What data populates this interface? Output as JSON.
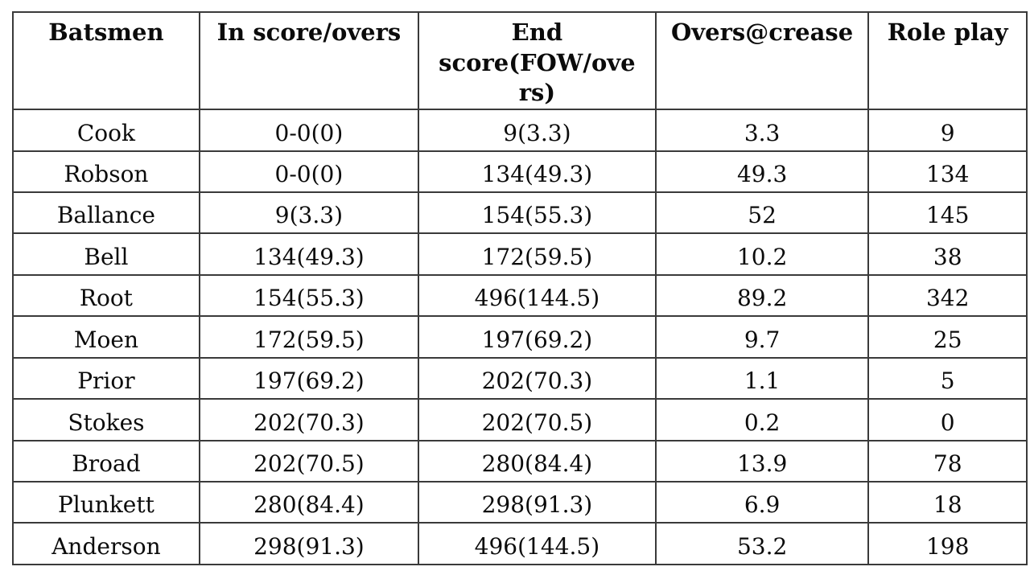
{
  "table": {
    "columns": [
      "Batsmen",
      "In score/overs",
      "End score(FOW/overs)",
      "Overs@crease",
      "Role play"
    ],
    "rows": [
      [
        "Cook",
        "0-0(0)",
        "9(3.3)",
        "3.3",
        "9"
      ],
      [
        "Robson",
        "0-0(0)",
        "134(49.3)",
        "49.3",
        "134"
      ],
      [
        "Ballance",
        "9(3.3)",
        "154(55.3)",
        "52",
        "145"
      ],
      [
        "Bell",
        "134(49.3)",
        "172(59.5)",
        "10.2",
        "38"
      ],
      [
        "Root",
        "154(55.3)",
        "496(144.5)",
        "89.2",
        "342"
      ],
      [
        "Moen",
        "172(59.5)",
        "197(69.2)",
        "9.7",
        "25"
      ],
      [
        "Prior",
        "197(69.2)",
        "202(70.3)",
        "1.1",
        "5"
      ],
      [
        "Stokes",
        "202(70.3)",
        "202(70.5)",
        "0.2",
        "0"
      ],
      [
        "Broad",
        "202(70.5)",
        "280(84.4)",
        "13.9",
        "78"
      ],
      [
        "Plunkett",
        "280(84.4)",
        "298(91.3)",
        "6.9",
        "18"
      ],
      [
        "Anderson",
        "298(91.3)",
        "496(144.5)",
        "53.2",
        "198"
      ]
    ],
    "colors": {
      "border": "#3a3a3a",
      "text": "#0b0b0b",
      "background": "#ffffff"
    }
  }
}
